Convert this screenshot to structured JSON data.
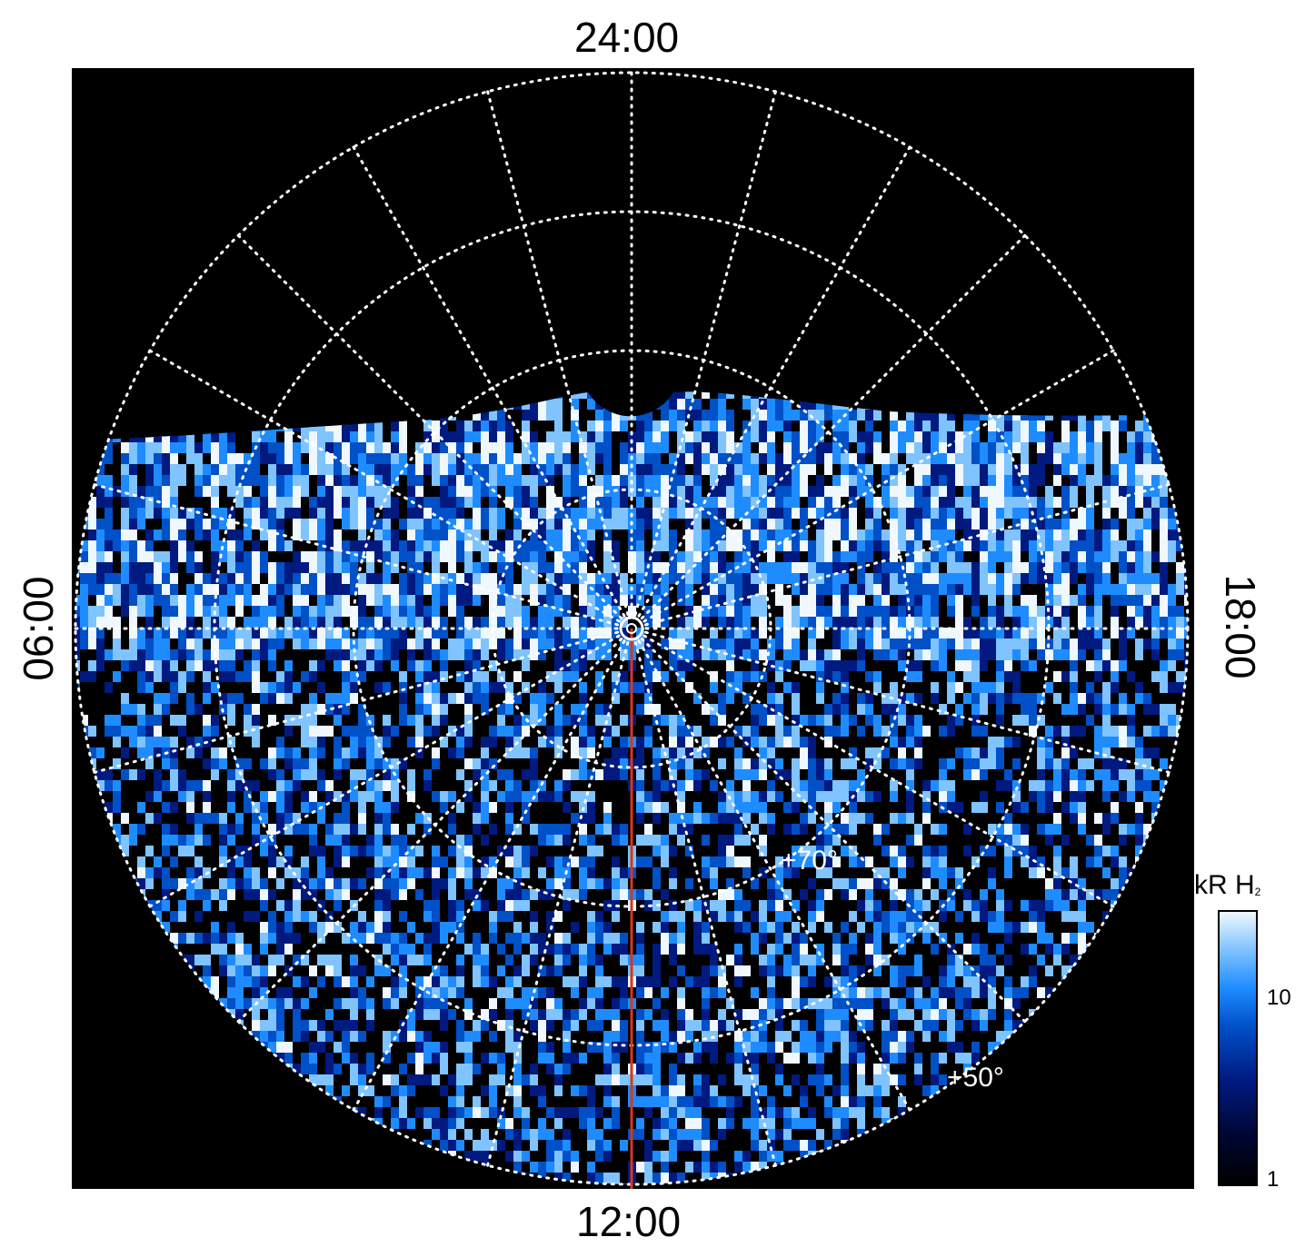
{
  "local_time_labels": {
    "top": "24:00",
    "bottom": "12:00",
    "left": "06:00",
    "right": "18:00"
  },
  "latitude_labels": {
    "inner": "+70°",
    "outer": "+50°"
  },
  "colorbar": {
    "title": "kR H",
    "title_subscript": "2",
    "scale": "log",
    "range": [
      1,
      25
    ],
    "tick_labels": [
      "1",
      "10"
    ],
    "colors": [
      "#000000",
      "#001a80",
      "#0050c8",
      "#1e8cff",
      "#7fc3ff",
      "#f0f8ff"
    ]
  },
  "map": {
    "projection": "polar",
    "background_color": "#000000",
    "grid_color": "#ffffff",
    "grid_style": "dotted",
    "meridian_line_color": "#d4381c",
    "meridian_line_time": "12:00"
  }
}
